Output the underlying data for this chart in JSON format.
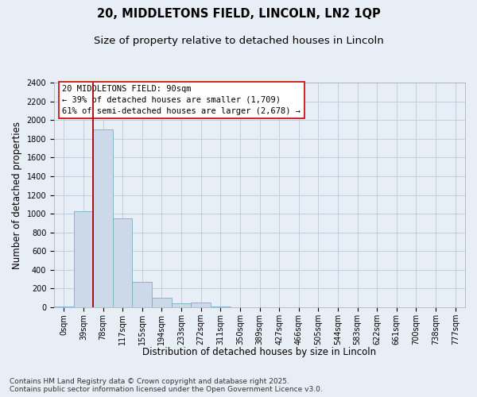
{
  "title_line1": "20, MIDDLETONS FIELD, LINCOLN, LN2 1QP",
  "title_line2": "Size of property relative to detached houses in Lincoln",
  "xlabel": "Distribution of detached houses by size in Lincoln",
  "ylabel": "Number of detached properties",
  "bin_labels": [
    "0sqm",
    "39sqm",
    "78sqm",
    "117sqm",
    "155sqm",
    "194sqm",
    "233sqm",
    "272sqm",
    "311sqm",
    "350sqm",
    "389sqm",
    "427sqm",
    "466sqm",
    "505sqm",
    "544sqm",
    "583sqm",
    "622sqm",
    "661sqm",
    "700sqm",
    "738sqm",
    "777sqm"
  ],
  "bar_values": [
    5,
    1030,
    1900,
    950,
    270,
    100,
    40,
    55,
    10,
    0,
    0,
    0,
    0,
    0,
    0,
    0,
    0,
    0,
    0,
    0,
    0
  ],
  "bar_color": "#ccd9e8",
  "bar_edgecolor": "#7aafc8",
  "grid_color": "#c0cfe0",
  "background_color": "#e8eef5",
  "vline_color": "#aa0000",
  "vline_x": 1.5,
  "annotation_text": "20 MIDDLETONS FIELD: 90sqm\n← 39% of detached houses are smaller (1,709)\n61% of semi-detached houses are larger (2,678) →",
  "annotation_box_facecolor": "#ffffff",
  "annotation_box_edgecolor": "#cc0000",
  "ylim_max": 2400,
  "ytick_step": 200,
  "footnote": "Contains HM Land Registry data © Crown copyright and database right 2025.\nContains public sector information licensed under the Open Government Licence v3.0.",
  "title_fontsize": 10.5,
  "subtitle_fontsize": 9.5,
  "axis_label_fontsize": 8.5,
  "tick_fontsize": 7,
  "annotation_fontsize": 7.5,
  "footnote_fontsize": 6.5
}
